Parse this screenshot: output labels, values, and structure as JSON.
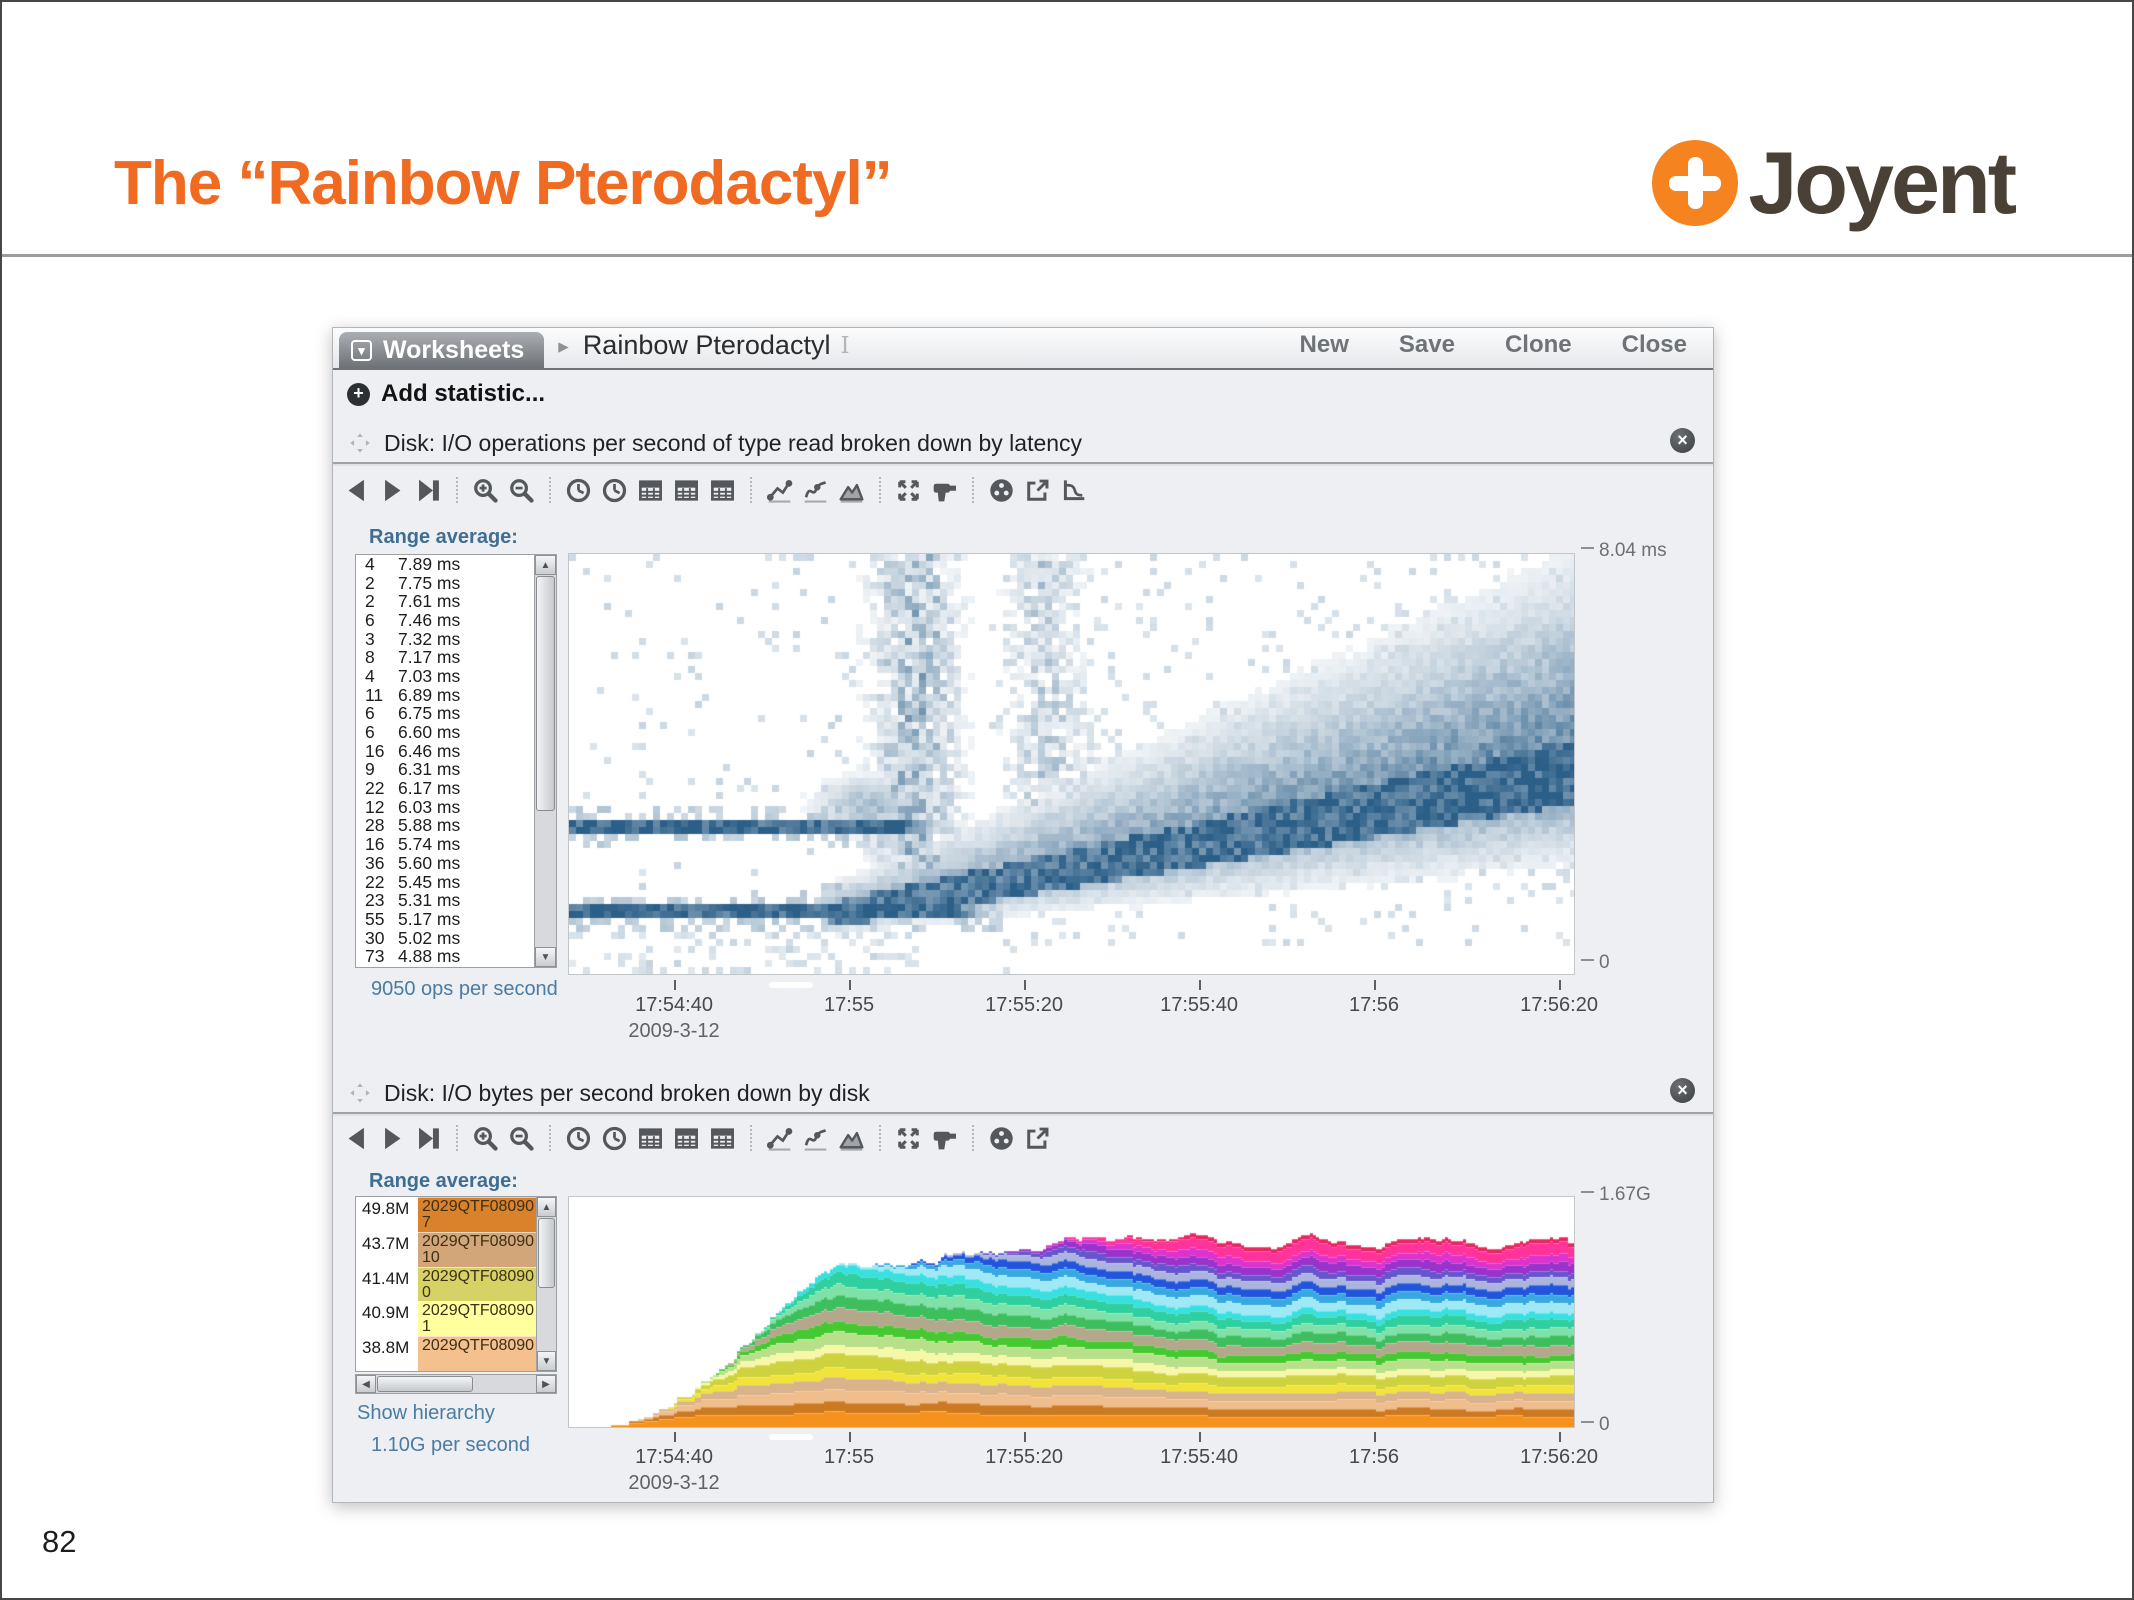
{
  "slide": {
    "title": "The “Rainbow Pterodactyl”",
    "page_number": "82",
    "accent_color": "#f06a21"
  },
  "logo": {
    "text": "Joyent",
    "circle_color": "#f5831f",
    "text_color": "#4a4136"
  },
  "window": {
    "tab_label": "Worksheets",
    "worksheet_title": "Rainbow Pterodactyl",
    "buttons": [
      {
        "label": "New"
      },
      {
        "label": "Save"
      },
      {
        "label": "Clone"
      },
      {
        "label": "Close"
      }
    ],
    "add_statistic_label": "Add statistic..."
  },
  "panel1": {
    "title": "Disk: I/O operations per second of type read broken down by latency",
    "range_average_label": "Range average:",
    "footer": "9050 ops per second",
    "toolbar": [
      "back",
      "forward",
      "skip-to-end",
      "|",
      "zoom-in",
      "zoom-out",
      "|",
      "time-back",
      "time-forward",
      "table",
      "table-summary",
      "table-details",
      "|",
      "scatter-plot",
      "line-graph",
      "mountain-graph",
      "|",
      "resize",
      "drilldown",
      "|",
      "color-wheel",
      "open-in-new",
      "decomposition"
    ]
  },
  "panel2": {
    "title": "Disk: I/O bytes per second broken down by disk",
    "range_average_label": "Range average:",
    "show_hierarchy_label": "Show hierarchy",
    "footer": "1.10G per second",
    "toolbar": [
      "back",
      "forward",
      "skip-to-end",
      "|",
      "zoom-in",
      "zoom-out",
      "|",
      "time-back",
      "time-forward",
      "table",
      "table-summary",
      "table-details",
      "|",
      "scatter-plot",
      "line-graph",
      "mountain-graph",
      "|",
      "resize",
      "drilldown",
      "|",
      "color-wheel",
      "open-in-new"
    ]
  },
  "chart_data": [
    {
      "type": "heatmap",
      "title": "Disk: I/O operations per second of type read broken down by latency",
      "description": "Blue latency heatmap (the pterodactyl): two dense low-latency horizontal bands from 17:54:30 to ~17:55 (the beak), a vertical plume of outliers near 17:55, then a widening diagonal fan of latency rising toward 8 ms through 17:56:20.",
      "x_ticks": [
        "17:54:40",
        "17:55",
        "17:55:20",
        "17:55:40",
        "17:56",
        "17:56:20"
      ],
      "x_date_label": "2009-3-12",
      "y_min_label": "0",
      "y_max_label": "8.04 ms",
      "y_min_ms": 0,
      "y_max_ms": 8.04,
      "value_label": "9050 ops per second",
      "range_rows": [
        [
          "4",
          "7.89 ms"
        ],
        [
          "2",
          "7.75 ms"
        ],
        [
          "2",
          "7.61 ms"
        ],
        [
          "6",
          "7.46 ms"
        ],
        [
          "3",
          "7.32 ms"
        ],
        [
          "8",
          "7.17 ms"
        ],
        [
          "4",
          "7.03 ms"
        ],
        [
          "11",
          "6.89 ms"
        ],
        [
          "6",
          "6.75 ms"
        ],
        [
          "6",
          "6.60 ms"
        ],
        [
          "16",
          "6.46 ms"
        ],
        [
          "9",
          "6.31 ms"
        ],
        [
          "22",
          "6.17 ms"
        ],
        [
          "12",
          "6.03 ms"
        ],
        [
          "28",
          "5.88 ms"
        ],
        [
          "16",
          "5.74 ms"
        ],
        [
          "36",
          "5.60 ms"
        ],
        [
          "22",
          "5.45 ms"
        ],
        [
          "23",
          "5.31 ms"
        ],
        [
          "55",
          "5.17 ms"
        ],
        [
          "30",
          "5.02 ms"
        ],
        [
          "73",
          "4.88 ms"
        ]
      ],
      "cell_color_max": "#2c5f88",
      "render": {
        "seed": 20090312,
        "cell": 7,
        "beak_bands": [
          {
            "y": 0.345,
            "x_end": 0.375,
            "half_th": 0.016
          },
          {
            "y": 0.155,
            "x_end": 0.43,
            "half_th": 0.016
          }
        ],
        "plumes": [
          {
            "x": 0.345,
            "sigma": 0.04,
            "amp": 0.55
          },
          {
            "x": 0.475,
            "sigma": 0.035,
            "amp": 0.38
          }
        ],
        "wedge": {
          "x_start": 0.26,
          "y_start": 0.14,
          "y_rise": 0.34,
          "up0": 0.1,
          "up1": 0.55,
          "dn0": 0.07,
          "dn1": 0.22
        }
      }
    },
    {
      "type": "stacked-area",
      "title": "Disk: I/O bytes per second broken down by disk",
      "description": "Rainbow-colored stacked area (per-disk I/O bytes/sec) ramping up steeply from ~17:54:30; lower warm-colored disks plateau by 17:55 while cooler colored disks stack on later, reaching a ~1.6G plateau by ~17:55:50.",
      "x_ticks": [
        "17:54:40",
        "17:55",
        "17:55:20",
        "17:55:40",
        "17:56",
        "17:56:20"
      ],
      "x_date_label": "2009-3-12",
      "y_min_label": "0",
      "y_max_label": "1.67G",
      "value_label": "1.10G per second",
      "legend_rows": [
        {
          "value": "49.8M",
          "disk": "2029QTF08090",
          "sub": "7",
          "color": "#d9822b"
        },
        {
          "value": "43.7M",
          "disk": "2029QTF08090",
          "sub": "10",
          "color": "#d2a679"
        },
        {
          "value": "41.4M",
          "disk": "2029QTF08090",
          "sub": "0",
          "color": "#d6d265"
        },
        {
          "value": "40.9M",
          "disk": "2029QTF08090",
          "sub": "1",
          "color": "#ffff9e"
        },
        {
          "value": "38.8M",
          "disk": "2029QTF08090",
          "sub": "",
          "color": "#f4c18e"
        }
      ],
      "band_colors": [
        "#f5921e",
        "#cc7a22",
        "#f0bd8c",
        "#d9b38a",
        "#f2e33a",
        "#cfd23f",
        "#f7f7a8",
        "#b8e08a",
        "#46c832",
        "#b4a88c",
        "#3dbf5e",
        "#7fe0a8",
        "#2fcf9f",
        "#38e0e0",
        "#9fe8f5",
        "#38a8e0",
        "#2255dd",
        "#aab4de",
        "#6655cc",
        "#9933cc",
        "#dd33cc",
        "#ff3399",
        "#e82560"
      ],
      "render": {
        "seed": 7,
        "base_frac": 0.036,
        "col_step": 3
      }
    }
  ]
}
